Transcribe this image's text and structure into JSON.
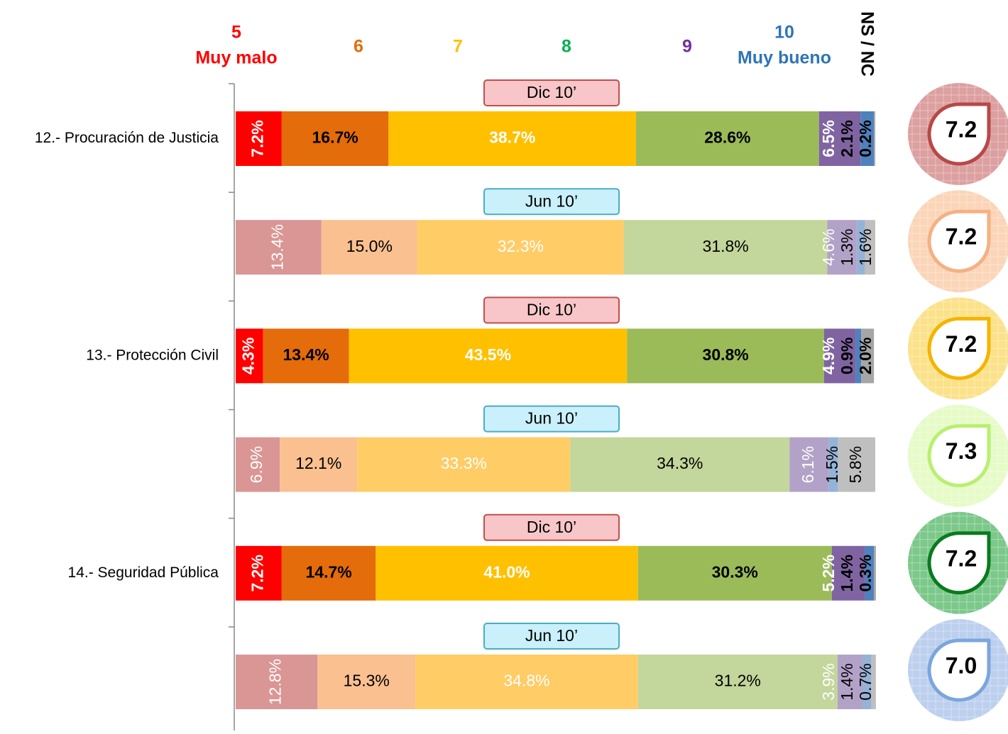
{
  "chart_data": {
    "type": "stacked-bar",
    "series": [
      {
        "name": "5",
        "sublabel": "Muy malo",
        "color": "#ff0000"
      },
      {
        "name": "6",
        "color": "#e46c0a"
      },
      {
        "name": "7",
        "color": "#ffc000"
      },
      {
        "name": "8",
        "color": "#00b050"
      },
      {
        "name": "9",
        "color": "#7030a0"
      },
      {
        "name": "10",
        "sublabel": "Muy bueno",
        "color": "#2e75b6"
      },
      {
        "name": "NS / NC",
        "color": "#000000"
      }
    ],
    "xlim": [
      0,
      100
    ],
    "groups": [
      {
        "label": "12.- Procuración de Justicia",
        "bars": [
          {
            "period": "Dic 10’",
            "bold": true,
            "label_fill": "#f8c6c8",
            "label_stroke": "#c0504d",
            "colors": [
              "#ff0000",
              "#e46c0a",
              "#ffc000",
              "#9bbb59",
              "#8064a2",
              "#4f81bd",
              "#a6a6a6"
            ],
            "values": [
              7.2,
              16.7,
              38.7,
              28.6,
              6.5,
              2.1,
              0.2
            ],
            "value_labels": [
              "7.2%",
              "16.7%",
              "38.7%",
              "28.6%",
              "6.5%",
              "2.1%",
              "0.2%"
            ],
            "score": 7.2,
            "score_label": "7.2",
            "score_fill": "#dca0a0",
            "score_stroke": "#b84848"
          },
          {
            "period": "Jun 10’",
            "bold": false,
            "label_fill": "#c9f0fb",
            "label_stroke": "#4bacc6",
            "colors": [
              "#d99694",
              "#fac090",
              "#ffcc66",
              "#c3d69b",
              "#b3a2c7",
              "#95b3d7",
              "#bfbfbf"
            ],
            "values": [
              13.4,
              15.0,
              32.3,
              31.8,
              4.6,
              1.3,
              1.6
            ],
            "value_labels": [
              "13.4%",
              "15.0%",
              "32.3%",
              "31.8%",
              "4.6%",
              "1.3%",
              "1.6%"
            ],
            "score": 7.2,
            "score_label": "7.2",
            "score_fill": "#fbd5b8",
            "score_stroke": "#f4b183"
          }
        ]
      },
      {
        "label": "13.- Protección Civil",
        "bars": [
          {
            "period": "Dic 10’",
            "bold": true,
            "label_fill": "#f8c6c8",
            "label_stroke": "#c0504d",
            "colors": [
              "#ff0000",
              "#e46c0a",
              "#ffc000",
              "#9bbb59",
              "#8064a2",
              "#4f81bd",
              "#a6a6a6"
            ],
            "values": [
              4.3,
              13.4,
              43.5,
              30.8,
              4.9,
              0.9,
              2.0
            ],
            "value_labels": [
              "4.3%",
              "13.4%",
              "43.5%",
              "30.8%",
              "4.9%",
              "0.9%",
              "2.0%"
            ],
            "score": 7.2,
            "score_label": "7.2",
            "score_fill": "#fbe28a",
            "score_stroke": "#f5b400"
          },
          {
            "period": "Jun 10’",
            "bold": false,
            "label_fill": "#c9f0fb",
            "label_stroke": "#4bacc6",
            "colors": [
              "#d99694",
              "#fac090",
              "#ffcc66",
              "#c3d69b",
              "#b3a2c7",
              "#95b3d7",
              "#bfbfbf"
            ],
            "values": [
              6.9,
              12.1,
              33.3,
              34.3,
              6.1,
              1.5,
              5.8
            ],
            "value_labels": [
              "6.9%",
              "12.1%",
              "33.3%",
              "34.3%",
              "6.1%",
              "1.5%",
              "5.8%"
            ],
            "score": 7.3,
            "score_label": "7.3",
            "score_fill": "#e6fbc8",
            "score_stroke": "#b8f070"
          }
        ]
      },
      {
        "label": "14.- Seguridad Pública",
        "bars": [
          {
            "period": "Dic 10’",
            "bold": true,
            "label_fill": "#f8c6c8",
            "label_stroke": "#c0504d",
            "colors": [
              "#ff0000",
              "#e46c0a",
              "#ffc000",
              "#9bbb59",
              "#8064a2",
              "#4f81bd",
              "#a6a6a6"
            ],
            "values": [
              7.2,
              14.7,
              41.0,
              30.3,
              5.2,
              1.4,
              0.3
            ],
            "value_labels": [
              "7.2%",
              "14.7%",
              "41.0%",
              "30.3%",
              "5.2%",
              "1.4%",
              "0.3%"
            ],
            "score": 7.2,
            "score_label": "7.2",
            "score_fill": "#7cc88a",
            "score_stroke": "#0a7a1e"
          },
          {
            "period": "Jun 10’",
            "bold": false,
            "label_fill": "#c9f0fb",
            "label_stroke": "#4bacc6",
            "colors": [
              "#d99694",
              "#fac090",
              "#ffcc66",
              "#c3d69b",
              "#b3a2c7",
              "#95b3d7",
              "#bfbfbf"
            ],
            "values": [
              12.8,
              15.3,
              34.8,
              31.2,
              3.9,
              1.4,
              0.7
            ],
            "value_labels": [
              "12.8%",
              "15.3%",
              "34.8%",
              "31.2%",
              "3.9%",
              "1.4%",
              "0.7%"
            ],
            "score": 7.0,
            "score_label": "7.0",
            "score_fill": "#bcd0ee",
            "score_stroke": "#7aa6dc"
          }
        ]
      }
    ]
  }
}
